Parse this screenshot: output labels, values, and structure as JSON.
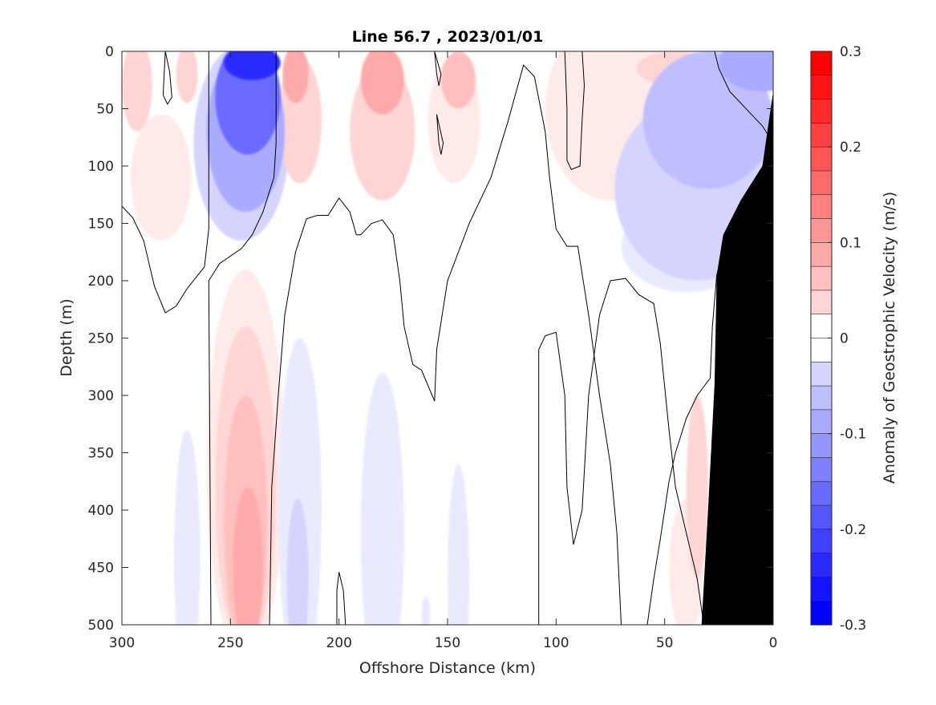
{
  "chart_data": {
    "type": "heatmap",
    "title": "Line 56.7 , 2023/01/01",
    "xlabel": "Offshore Distance (km)",
    "ylabel": "Depth (m)",
    "xlim": [
      300,
      0
    ],
    "ylim": [
      0,
      500
    ],
    "x_reversed": true,
    "y_reversed": true,
    "x_ticks": [
      300,
      250,
      200,
      150,
      100,
      50,
      0
    ],
    "x_tick_labels": [
      "300",
      "250",
      "200",
      "150",
      "100",
      "50",
      "0"
    ],
    "y_ticks": [
      0,
      50,
      100,
      150,
      200,
      250,
      300,
      350,
      400,
      450,
      500
    ],
    "y_tick_labels": [
      "0",
      "50",
      "100",
      "150",
      "200",
      "250",
      "300",
      "350",
      "400",
      "450",
      "500"
    ],
    "colorbar": {
      "label": "Anomaly of Geostrophic Velocity (m/s)",
      "min": -0.3,
      "max": 0.3,
      "step": 0.025,
      "ticks": [
        0.3,
        0.2,
        0.1,
        0,
        -0.1,
        -0.2,
        -0.3
      ],
      "tick_labels": [
        "0.3",
        "0.2",
        "0.1",
        "0",
        "-0.1",
        "-0.2",
        "-0.3"
      ],
      "negative_color": "#0000ff",
      "positive_color": "#ff0000",
      "zero_color": "#ffffff"
    },
    "grid": false,
    "bottom_color": "#000000",
    "features": [
      {
        "type": "blob",
        "x": 240,
        "depth": 10,
        "rx": 13,
        "ry": 15,
        "value": -0.25
      },
      {
        "type": "blob",
        "x": 242,
        "depth": 40,
        "rx": 15,
        "ry": 50,
        "value": -0.175
      },
      {
        "type": "blob",
        "x": 243,
        "depth": 70,
        "rx": 18,
        "ry": 70,
        "value": -0.1
      },
      {
        "type": "blob",
        "x": 245,
        "depth": 80,
        "rx": 22,
        "ry": 85,
        "value": -0.05
      },
      {
        "type": "blob",
        "x": 5,
        "depth": 10,
        "rx": 20,
        "ry": 25,
        "value": -0.1
      },
      {
        "type": "blob",
        "x": 30,
        "depth": 60,
        "rx": 30,
        "ry": 60,
        "value": -0.075
      },
      {
        "type": "blob",
        "x": 35,
        "depth": 120,
        "rx": 38,
        "ry": 80,
        "value": -0.05
      },
      {
        "type": "blob",
        "x": 40,
        "depth": 170,
        "rx": 30,
        "ry": 40,
        "value": -0.025
      },
      {
        "type": "blob",
        "x": 220,
        "depth": 20,
        "rx": 6,
        "ry": 25,
        "value": 0.1
      },
      {
        "type": "blob",
        "x": 218,
        "depth": 60,
        "rx": 10,
        "ry": 55,
        "value": 0.05
      },
      {
        "type": "blob",
        "x": 180,
        "depth": 25,
        "rx": 10,
        "ry": 30,
        "value": 0.1
      },
      {
        "type": "blob",
        "x": 180,
        "depth": 70,
        "rx": 15,
        "ry": 60,
        "value": 0.05
      },
      {
        "type": "blob",
        "x": 145,
        "depth": 25,
        "rx": 8,
        "ry": 25,
        "value": 0.075
      },
      {
        "type": "blob",
        "x": 147,
        "depth": 60,
        "rx": 12,
        "ry": 55,
        "value": 0.025
      },
      {
        "type": "blob",
        "x": 293,
        "depth": 30,
        "rx": 7,
        "ry": 40,
        "value": 0.05
      },
      {
        "type": "blob",
        "x": 270,
        "depth": 20,
        "rx": 5,
        "ry": 25,
        "value": 0.05
      },
      {
        "type": "blob",
        "x": 282,
        "depth": 110,
        "rx": 14,
        "ry": 55,
        "value": 0.025
      },
      {
        "type": "blob",
        "x": 75,
        "depth": 50,
        "rx": 30,
        "ry": 80,
        "value": 0.025
      },
      {
        "type": "blob",
        "x": 45,
        "depth": 15,
        "rx": 18,
        "ry": 15,
        "value": 0.05
      },
      {
        "type": "blob",
        "x": 243,
        "depth": 360,
        "rx": 18,
        "ry": 170,
        "value": 0.025
      },
      {
        "type": "blob",
        "x": 243,
        "depth": 380,
        "rx": 14,
        "ry": 140,
        "value": 0.05
      },
      {
        "type": "blob",
        "x": 243,
        "depth": 410,
        "rx": 10,
        "ry": 110,
        "value": 0.075
      },
      {
        "type": "blob",
        "x": 242,
        "depth": 450,
        "rx": 7,
        "ry": 70,
        "value": 0.1
      },
      {
        "type": "blob",
        "x": 40,
        "depth": 450,
        "rx": 8,
        "ry": 60,
        "value": 0.025
      },
      {
        "type": "blob",
        "x": 35,
        "depth": 380,
        "rx": 5,
        "ry": 80,
        "value": 0.05
      },
      {
        "type": "blob",
        "x": 218,
        "depth": 400,
        "rx": 10,
        "ry": 150,
        "value": -0.025
      },
      {
        "type": "blob",
        "x": 219,
        "depth": 460,
        "rx": 5,
        "ry": 70,
        "value": -0.05
      },
      {
        "type": "blob",
        "x": 180,
        "depth": 420,
        "rx": 10,
        "ry": 140,
        "value": -0.025
      },
      {
        "type": "blob",
        "x": 270,
        "depth": 440,
        "rx": 6,
        "ry": 110,
        "value": -0.025
      },
      {
        "type": "blob",
        "x": 145,
        "depth": 460,
        "rx": 5,
        "ry": 100,
        "value": -0.025
      },
      {
        "type": "blob",
        "x": 160,
        "depth": 490,
        "rx": 2,
        "ry": 15,
        "value": -0.025
      }
    ],
    "zero_contours": [
      [
        [
          300,
          135
        ],
        [
          295,
          145
        ],
        [
          290,
          165
        ],
        [
          285,
          205
        ],
        [
          280,
          228
        ],
        [
          275,
          222
        ],
        [
          270,
          207
        ],
        [
          265,
          195
        ],
        [
          262,
          188
        ],
        [
          260,
          155
        ],
        [
          260,
          0
        ]
      ],
      [
        [
          280,
          0
        ],
        [
          278,
          18
        ],
        [
          277,
          40
        ],
        [
          279,
          46
        ],
        [
          281,
          38
        ],
        [
          280,
          0
        ]
      ],
      [
        [
          259,
          500
        ],
        [
          260,
          200
        ],
        [
          255,
          185
        ],
        [
          245,
          172
        ],
        [
          240,
          160
        ],
        [
          235,
          140
        ],
        [
          230,
          110
        ],
        [
          229,
          80
        ],
        [
          229,
          0
        ]
      ],
      [
        [
          232,
          500
        ],
        [
          231,
          380
        ],
        [
          228,
          300
        ],
        [
          225,
          230
        ],
        [
          220,
          175
        ],
        [
          215,
          146
        ],
        [
          210,
          143
        ],
        [
          205,
          143
        ],
        [
          200,
          128
        ],
        [
          195,
          140
        ],
        [
          192,
          160
        ],
        [
          190,
          160
        ],
        [
          185,
          150
        ],
        [
          180,
          147
        ],
        [
          175,
          160
        ],
        [
          172,
          200
        ],
        [
          170,
          240
        ],
        [
          166,
          273
        ],
        [
          162,
          278
        ],
        [
          156,
          305
        ],
        [
          155,
          260
        ],
        [
          150,
          200
        ],
        [
          140,
          150
        ],
        [
          130,
          110
        ],
        [
          122,
          60
        ],
        [
          115,
          12
        ],
        [
          110,
          22
        ],
        [
          105,
          70
        ],
        [
          103,
          110
        ],
        [
          100,
          155
        ],
        [
          95,
          170
        ],
        [
          90,
          170
        ],
        [
          85,
          230
        ],
        [
          80,
          300
        ],
        [
          75,
          360
        ],
        [
          72,
          420
        ],
        [
          70,
          500
        ]
      ],
      [
        [
          201,
          500
        ],
        [
          201,
          470
        ],
        [
          200,
          454
        ],
        [
          198,
          470
        ],
        [
          197,
          500
        ]
      ],
      [
        [
          156,
          0
        ],
        [
          155,
          20
        ],
        [
          154,
          30
        ],
        [
          153,
          20
        ],
        [
          156,
          0
        ]
      ],
      [
        [
          155,
          55
        ],
        [
          154,
          80
        ],
        [
          153,
          90
        ],
        [
          152,
          80
        ],
        [
          155,
          55
        ]
      ],
      [
        [
          108,
          500
        ],
        [
          108,
          260
        ],
        [
          105,
          248
        ],
        [
          100,
          245
        ],
        [
          96,
          300
        ],
        [
          95,
          380
        ],
        [
          92,
          430
        ],
        [
          88,
          400
        ],
        [
          85,
          300
        ],
        [
          80,
          230
        ],
        [
          75,
          200
        ],
        [
          68,
          198
        ],
        [
          62,
          212
        ],
        [
          55,
          220
        ],
        [
          52,
          255
        ],
        [
          48,
          330
        ],
        [
          45,
          380
        ],
        [
          40,
          420
        ],
        [
          35,
          460
        ],
        [
          32,
          500
        ]
      ],
      [
        [
          96,
          0
        ],
        [
          95,
          50
        ],
        [
          95,
          95
        ],
        [
          93,
          103
        ],
        [
          89,
          100
        ],
        [
          88,
          60
        ],
        [
          87,
          30
        ],
        [
          88,
          0
        ]
      ],
      [
        [
          58,
          500
        ],
        [
          55,
          460
        ],
        [
          52,
          425
        ],
        [
          48,
          375
        ],
        [
          45,
          350
        ],
        [
          40,
          320
        ],
        [
          35,
          300
        ],
        [
          29,
          285
        ],
        [
          28,
          240
        ],
        [
          26,
          195
        ],
        [
          22,
          165
        ],
        [
          15,
          145
        ],
        [
          0,
          125
        ]
      ],
      [
        [
          27,
          0
        ],
        [
          25,
          15
        ],
        [
          20,
          35
        ],
        [
          10,
          55
        ],
        [
          5,
          65
        ],
        [
          0,
          80
        ]
      ]
    ],
    "bathymetry": [
      [
        33,
        500
      ],
      [
        30,
        400
      ],
      [
        27,
        290
      ],
      [
        26,
        195
      ],
      [
        23,
        160
      ],
      [
        15,
        130
      ],
      [
        5,
        100
      ],
      [
        0,
        35
      ],
      [
        0,
        500
      ]
    ]
  }
}
